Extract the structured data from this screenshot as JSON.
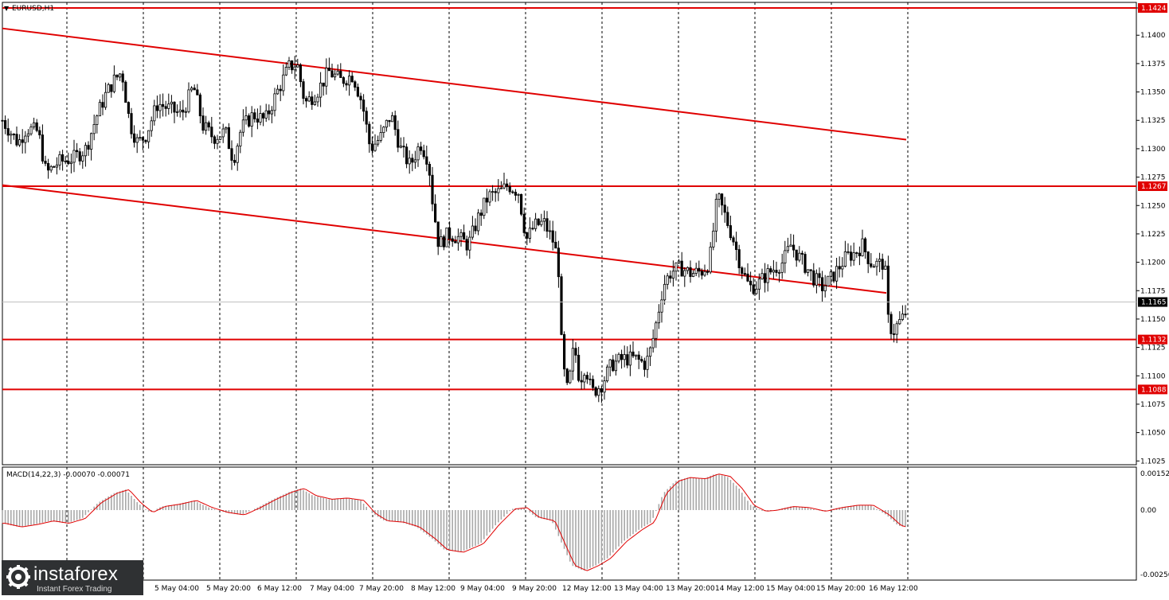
{
  "window": {
    "symbol_title": "EURUSD,H1"
  },
  "price_axis": {
    "ticks": [
      "1.1424",
      "1.1400",
      "1.1375",
      "1.1350",
      "1.1325",
      "1.1300",
      "1.1275",
      "1.1250",
      "1.1225",
      "1.1200",
      "1.1175",
      "1.1150",
      "1.1125",
      "1.1100",
      "1.1075",
      "1.1050",
      "1.1025"
    ],
    "current_price": "1.1165"
  },
  "levels": [
    {
      "label": "1.1424",
      "price": 1.1424,
      "color": "#e00000"
    },
    {
      "label": "1.1267",
      "price": 1.1267,
      "color": "#e00000"
    },
    {
      "label": "1.1132",
      "price": 1.1132,
      "color": "#e00000"
    },
    {
      "label": "1.1088",
      "price": 1.1088,
      "color": "#e00000"
    }
  ],
  "macd": {
    "title": "MACD(14,22,3) -0.00070 -0.00071",
    "ticks": [
      "0.00152",
      "0.00",
      "-0.00256"
    ]
  },
  "time_labels": [
    "5 May 04:00",
    "5 May 20:00",
    "6 May 12:00",
    "7 May 04:00",
    "7 May 20:00",
    "8 May 12:00",
    "9 May 04:00",
    "9 May 20:00",
    "12 May 12:00",
    "13 May 04:00",
    "13 May 20:00",
    "14 May 12:00",
    "15 May 04:00",
    "15 May 20:00",
    "16 May 12:00"
  ],
  "logo": {
    "brand": "instaforex",
    "tagline": "Instant Forex Trading"
  },
  "chart_data": {
    "type": "candlestick",
    "symbol": "EURUSD",
    "timeframe": "H1",
    "ylim": [
      1.1015,
      1.143
    ],
    "horizontal_levels": [
      1.1424,
      1.1267,
      1.1132,
      1.1088
    ],
    "channel_lines": [
      {
        "from": [
          0,
          1.1406
        ],
        "to": [
          1135,
          1.1308
        ]
      },
      {
        "from": [
          0,
          1.1268
        ],
        "to": [
          1110,
          1.1173
        ]
      }
    ],
    "price_path": [
      [
        0,
        1.1325
      ],
      [
        10,
        1.1315
      ],
      [
        20,
        1.1305
      ],
      [
        30,
        1.1318
      ],
      [
        45,
        1.1315
      ],
      [
        55,
        1.1278
      ],
      [
        70,
        1.1288
      ],
      [
        90,
        1.1292
      ],
      [
        105,
        1.13
      ],
      [
        118,
        1.1328
      ],
      [
        130,
        1.1348
      ],
      [
        140,
        1.136
      ],
      [
        150,
        1.1368
      ],
      [
        160,
        1.1322
      ],
      [
        170,
        1.1305
      ],
      [
        180,
        1.1312
      ],
      [
        195,
        1.134
      ],
      [
        210,
        1.1335
      ],
      [
        225,
        1.133
      ],
      [
        240,
        1.1355
      ],
      [
        252,
        1.132
      ],
      [
        265,
        1.131
      ],
      [
        280,
        1.1315
      ],
      [
        290,
        1.129
      ],
      [
        300,
        1.1318
      ],
      [
        315,
        1.133
      ],
      [
        330,
        1.1325
      ],
      [
        345,
        1.135
      ],
      [
        360,
        1.1372
      ],
      [
        370,
        1.1375
      ],
      [
        380,
        1.134
      ],
      [
        395,
        1.135
      ],
      [
        410,
        1.1368
      ],
      [
        425,
        1.136
      ],
      [
        440,
        1.1365
      ],
      [
        452,
        1.134
      ],
      [
        462,
        1.13
      ],
      [
        475,
        1.131
      ],
      [
        488,
        1.133
      ],
      [
        500,
        1.13
      ],
      [
        512,
        1.1285
      ],
      [
        525,
        1.1305
      ],
      [
        535,
        1.129
      ],
      [
        540,
        1.1255
      ],
      [
        548,
        1.1215
      ],
      [
        560,
        1.1225
      ],
      [
        572,
        1.1222
      ],
      [
        585,
        1.1215
      ],
      [
        598,
        1.124
      ],
      [
        610,
        1.1258
      ],
      [
        625,
        1.1262
      ],
      [
        635,
        1.1268
      ],
      [
        648,
        1.1262
      ],
      [
        658,
        1.122
      ],
      [
        668,
        1.1232
      ],
      [
        680,
        1.1235
      ],
      [
        692,
        1.1218
      ],
      [
        698,
        1.12
      ],
      [
        703,
        1.1112
      ],
      [
        710,
        1.1085
      ],
      [
        718,
        1.1128
      ],
      [
        725,
        1.1095
      ],
      [
        732,
        1.111
      ],
      [
        740,
        1.1085
      ],
      [
        752,
        1.1092
      ],
      [
        765,
        1.111
      ],
      [
        780,
        1.1115
      ],
      [
        795,
        1.1115
      ],
      [
        808,
        1.111
      ],
      [
        815,
        1.1125
      ],
      [
        822,
        1.115
      ],
      [
        830,
        1.118
      ],
      [
        840,
        1.1192
      ],
      [
        852,
        1.1195
      ],
      [
        865,
        1.119
      ],
      [
        878,
        1.1192
      ],
      [
        888,
        1.12
      ],
      [
        898,
        1.1258
      ],
      [
        908,
        1.124
      ],
      [
        918,
        1.122
      ],
      [
        928,
        1.1195
      ],
      [
        938,
        1.1178
      ],
      [
        948,
        1.118
      ],
      [
        958,
        1.1188
      ],
      [
        970,
        1.1195
      ],
      [
        980,
        1.12
      ],
      [
        990,
        1.1215
      ],
      [
        1000,
        1.1205
      ],
      [
        1010,
        1.1195
      ],
      [
        1020,
        1.1185
      ],
      [
        1030,
        1.1178
      ],
      [
        1040,
        1.1185
      ],
      [
        1050,
        1.1195
      ],
      [
        1060,
        1.1205
      ],
      [
        1070,
        1.1208
      ],
      [
        1080,
        1.1215
      ],
      [
        1090,
        1.12
      ],
      [
        1100,
        1.1198
      ],
      [
        1108,
        1.12
      ],
      [
        1112,
        1.115
      ],
      [
        1118,
        1.1138
      ],
      [
        1124,
        1.1145
      ],
      [
        1130,
        1.115
      ],
      [
        1136,
        1.1158
      ]
    ],
    "macd_path": [
      [
        0,
        -0.00055
      ],
      [
        20,
        -0.0007
      ],
      [
        40,
        -0.0006
      ],
      [
        60,
        -0.00045
      ],
      [
        80,
        -0.00055
      ],
      [
        100,
        -0.00035
      ],
      [
        120,
        0.0003
      ],
      [
        140,
        0.0007
      ],
      [
        155,
        0.00085
      ],
      [
        170,
        0.0003
      ],
      [
        185,
        -0.0001
      ],
      [
        200,
        0.00015
      ],
      [
        220,
        0.00025
      ],
      [
        240,
        0.0004
      ],
      [
        260,
        0.0001
      ],
      [
        280,
        -0.0001
      ],
      [
        300,
        -0.0002
      ],
      [
        320,
        0.0001
      ],
      [
        340,
        0.00045
      ],
      [
        360,
        0.00075
      ],
      [
        375,
        0.0009
      ],
      [
        390,
        0.0006
      ],
      [
        410,
        0.00045
      ],
      [
        430,
        0.0005
      ],
      [
        450,
        0.0004
      ],
      [
        465,
        -0.00015
      ],
      [
        480,
        -0.00045
      ],
      [
        500,
        -0.0005
      ],
      [
        520,
        -0.0007
      ],
      [
        540,
        -0.0012
      ],
      [
        555,
        -0.00165
      ],
      [
        575,
        -0.00175
      ],
      [
        600,
        -0.0014
      ],
      [
        620,
        -0.0006
      ],
      [
        640,
        5e-05
      ],
      [
        655,
        0.0001
      ],
      [
        670,
        -0.0003
      ],
      [
        690,
        -0.00045
      ],
      [
        700,
        -0.0012
      ],
      [
        715,
        -0.0023
      ],
      [
        730,
        -0.00252
      ],
      [
        745,
        -0.0023
      ],
      [
        760,
        -0.002
      ],
      [
        780,
        -0.0013
      ],
      [
        800,
        -0.0008
      ],
      [
        815,
        -0.0005
      ],
      [
        830,
        0.0007
      ],
      [
        845,
        0.0012
      ],
      [
        860,
        0.00135
      ],
      [
        880,
        0.0013
      ],
      [
        895,
        0.0015
      ],
      [
        910,
        0.0014
      ],
      [
        925,
        0.0009
      ],
      [
        940,
        0.0002
      ],
      [
        955,
        -5e-05
      ],
      [
        970,
        0.0
      ],
      [
        990,
        0.00015
      ],
      [
        1010,
        0.0001
      ],
      [
        1030,
        -5e-05
      ],
      [
        1050,
        0.0001
      ],
      [
        1070,
        0.0002
      ],
      [
        1090,
        0.0002
      ],
      [
        1110,
        -0.0002
      ],
      [
        1125,
        -0.00065
      ],
      [
        1135,
        -0.00071
      ]
    ]
  }
}
